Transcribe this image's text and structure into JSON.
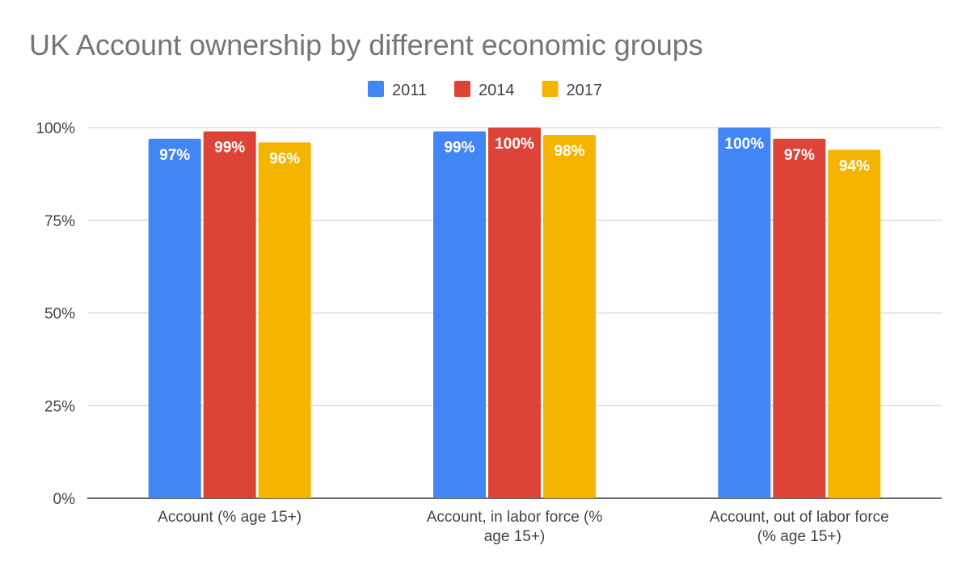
{
  "chart_data": {
    "type": "bar",
    "title": "UK Account ownership by different economic groups",
    "categories": [
      [
        "Account (% age 15+)"
      ],
      [
        "Account, in labor force (%",
        "age 15+)"
      ],
      [
        "Account, out of labor force",
        "(% age 15+)"
      ]
    ],
    "series": [
      {
        "name": "2011",
        "color": "#4285F4",
        "values": [
          97,
          99,
          100
        ],
        "labels": [
          "97%",
          "99%",
          "100%"
        ]
      },
      {
        "name": "2014",
        "color": "#DB4437",
        "values": [
          99,
          100,
          97
        ],
        "labels": [
          "99%",
          "100%",
          "97%"
        ]
      },
      {
        "name": "2017",
        "color": "#F4B400",
        "values": [
          96,
          98,
          94
        ],
        "labels": [
          "96%",
          "98%",
          "94%"
        ]
      }
    ],
    "yticks": [
      "0%",
      "25%",
      "50%",
      "75%",
      "100%"
    ],
    "ytick_values": [
      0,
      25,
      50,
      75,
      100
    ],
    "ylim": [
      0,
      100
    ],
    "xlabel": "",
    "ylabel": "",
    "grid": true,
    "legend_position": "top-center"
  }
}
